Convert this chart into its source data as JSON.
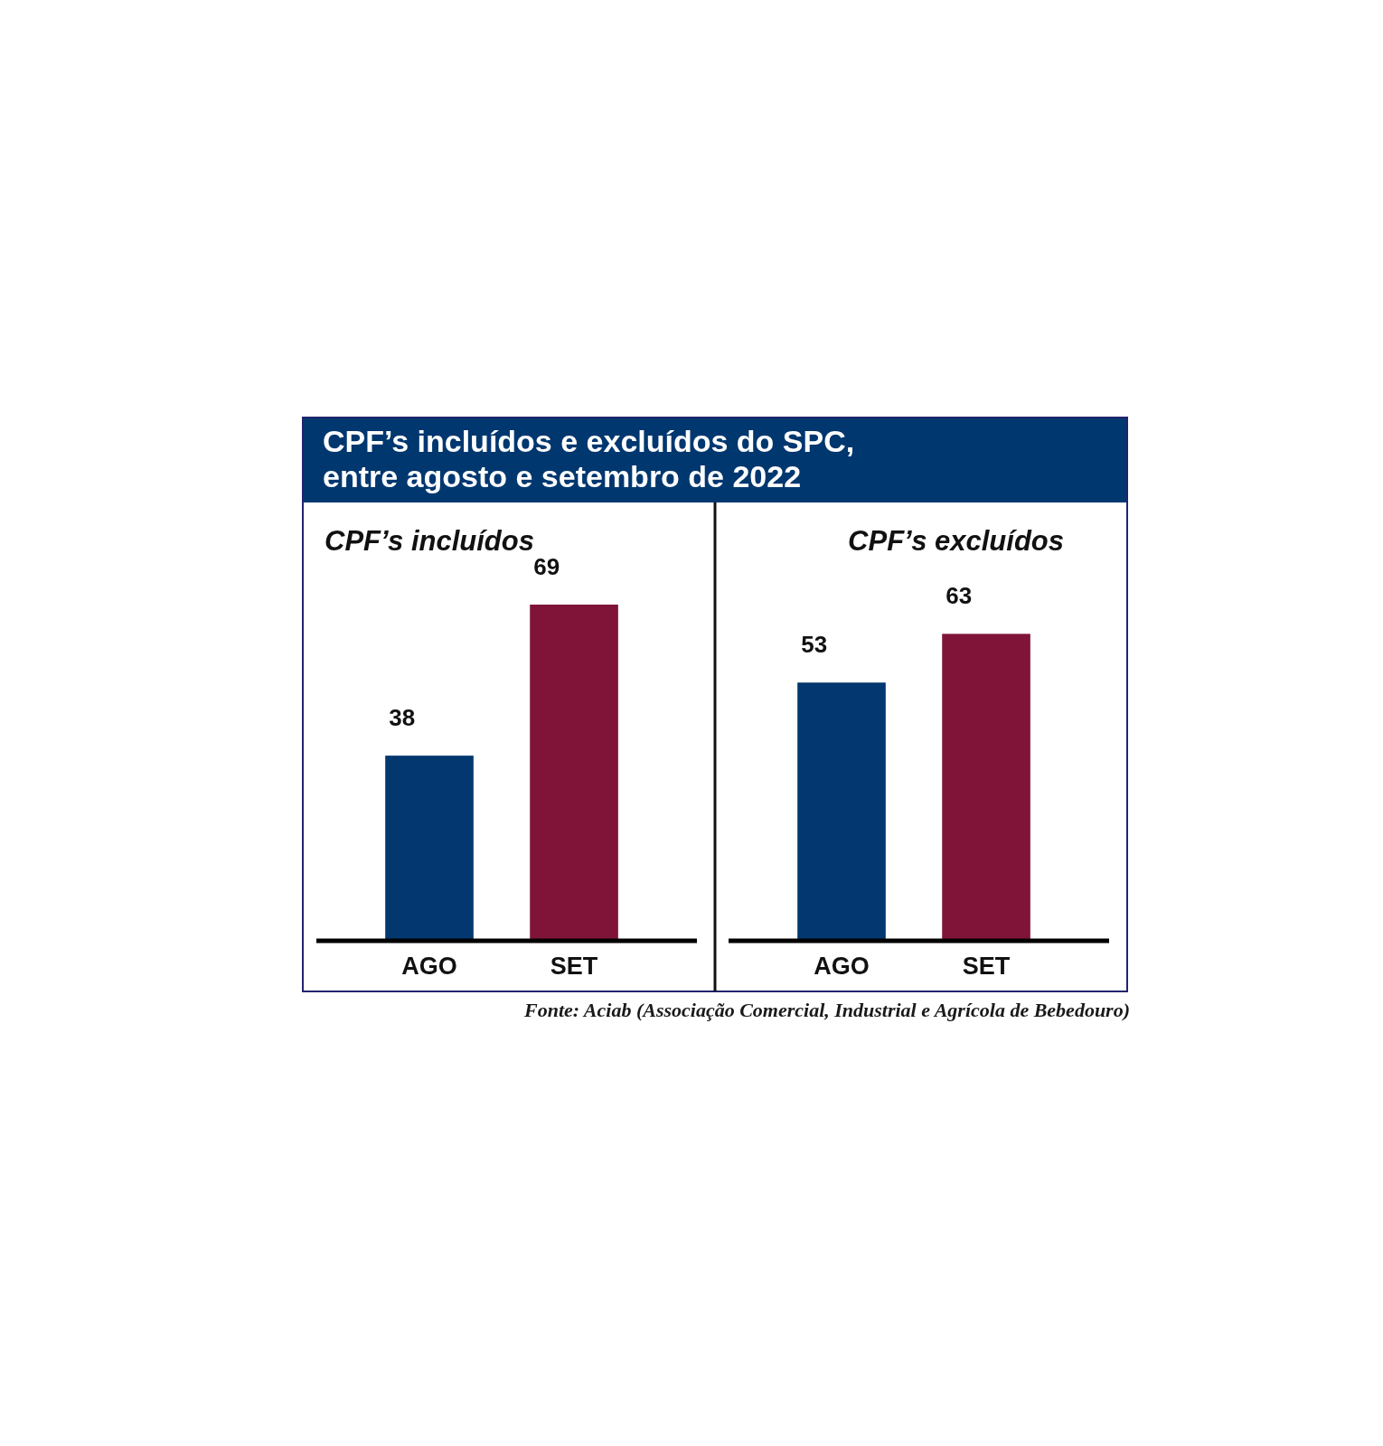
{
  "chart_data": [
    {
      "type": "bar",
      "title": "CPF’s incluídos e excluídos do SPC, entre agosto e setembro de 2022",
      "subtitle": "CPF’s incluídos",
      "categories": [
        "AGO",
        "SET"
      ],
      "values": [
        38,
        69
      ],
      "colors": [
        "#02376f",
        "#7f1438"
      ],
      "data_labels": true
    },
    {
      "type": "bar",
      "subtitle": "CPF’s excluídos",
      "categories": [
        "AGO",
        "SET"
      ],
      "values": [
        53,
        63
      ],
      "colors": [
        "#02376f",
        "#7f1438"
      ],
      "data_labels": true,
      "annotations": [
        "Fonte: Aciab (Associação Comercial, Industrial e Agrícola de Bebedouro)"
      ]
    }
  ]
}
